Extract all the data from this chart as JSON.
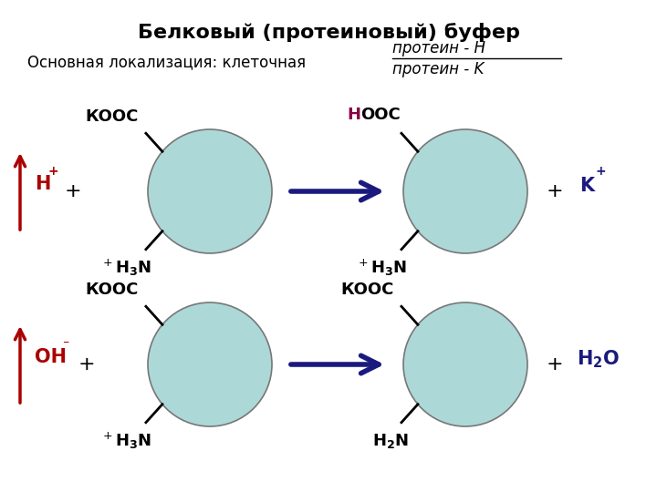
{
  "title": "Белковый (протеиновый) буфер",
  "subtitle_left": "Основная локализация: клеточная",
  "fraction_top": "протеин - H",
  "fraction_bottom": "протеин - K",
  "bg_color": "#ffffff",
  "circle_color": "#add8d8",
  "circle_edge_color": "#777777",
  "arrow_color": "#1a1a7e",
  "red_color": "#aa0000",
  "black_color": "#000000",
  "dark_blue_color": "#1a1a7e",
  "magenta_color": "#880044",
  "title_fontsize": 16,
  "label_fontsize": 13,
  "ion_fontsize": 15
}
